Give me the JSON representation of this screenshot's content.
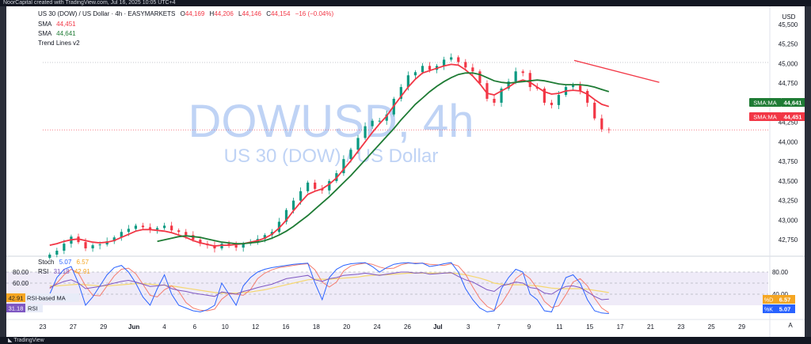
{
  "header_strip": "NoorCapital created with TradingView.com, Jul 16, 2025 10:05 UTC+4",
  "footer_brand": "TradingView",
  "legend": {
    "symbol": "US 30 (DOW) / US Dollar · 4h · EASYMARKETS",
    "o_label": "O",
    "o": "44,169",
    "h_label": "H",
    "h": "44,206",
    "l_label": "L",
    "l": "44,146",
    "c_label": "C",
    "c": "44,154",
    "change": "−16 (−0.04%)",
    "sma1_label": "SMA",
    "sma1": "44,451",
    "sma2_label": "SMA",
    "sma2": "44,641",
    "trend_label": "Trend Lines v2"
  },
  "watermark": {
    "main": "DOWUSD, 4h",
    "sub": "US 30 (DOW) / US Dollar"
  },
  "axis": {
    "currency": "USD",
    "corner": "A"
  },
  "price_badges": [
    {
      "label": "SMA:MA",
      "value": "44,641",
      "color": "#1e7b34"
    },
    {
      "label": "SMA:MA",
      "value": "44,451",
      "color": "#f23645"
    }
  ],
  "oscillator": {
    "stoch_label": "Stoch",
    "stoch_k": "5.07",
    "stoch_d": "6.57",
    "rsi_label": "RSI",
    "rsi_a": "31.18",
    "rsi_b": "42.91",
    "rsi_ma_label": "RSI-based MA",
    "rsi_badge": "31.18",
    "d_badge_label": "%D",
    "d_badge": "6.57",
    "k_badge_label": "%K",
    "k_badge": "5.07"
  },
  "chart_data": {
    "type": "candlestick",
    "symbol": "US 30 (DOW) / US Dollar",
    "timeframe": "4h",
    "y_ticks": [
      42750,
      43000,
      43250,
      43500,
      43750,
      44000,
      44250,
      44500,
      44750,
      45000,
      45250,
      45500
    ],
    "y_tick_labels": [
      "42,750",
      "43,000",
      "43,250",
      "43,500",
      "43,750",
      "44,000",
      "44,250",
      "44,500",
      "44,750",
      "45,000",
      "45,250",
      "45,500"
    ],
    "ylim": [
      42560,
      45630
    ],
    "x_ticks": [
      {
        "label": "23",
        "t": 0
      },
      {
        "label": "27",
        "t": 1.75
      },
      {
        "label": "29",
        "t": 3.5
      },
      {
        "label": "Jun",
        "t": 5.25
      },
      {
        "label": "4",
        "t": 7.0
      },
      {
        "label": "6",
        "t": 8.75
      },
      {
        "label": "10",
        "t": 10.5
      },
      {
        "label": "12",
        "t": 12.25
      },
      {
        "label": "16",
        "t": 14.0
      },
      {
        "label": "18",
        "t": 15.75
      },
      {
        "label": "20",
        "t": 17.5
      },
      {
        "label": "24",
        "t": 19.25
      },
      {
        "label": "26",
        "t": 21.0
      },
      {
        "label": "Jul",
        "t": 22.75
      },
      {
        "label": "3",
        "t": 24.5
      },
      {
        "label": "7",
        "t": 26.25
      },
      {
        "label": "9",
        "t": 28.0
      },
      {
        "label": "11",
        "t": 29.75
      },
      {
        "label": "15",
        "t": 31.5
      },
      {
        "label": "17",
        "t": 33.25
      },
      {
        "label": "21",
        "t": 35.0
      },
      {
        "label": "23",
        "t": 36.75
      },
      {
        "label": "25",
        "t": 38.5
      },
      {
        "label": "29",
        "t": 40.25
      }
    ],
    "bold_x_labels": [
      "Jun",
      "Jul"
    ],
    "close": [
      42560,
      42610,
      42700,
      42790,
      42720,
      42640,
      42680,
      42690,
      42730,
      42780,
      42850,
      42890,
      42930,
      42910,
      42880,
      42900,
      42930,
      42870,
      42850,
      42810,
      42750,
      42700,
      42680,
      42640,
      42700,
      42680,
      42650,
      42700,
      42720,
      42760,
      42810,
      42850,
      42980,
      43130,
      43250,
      43370,
      43480,
      43400,
      43380,
      43500,
      43600,
      43780,
      43900,
      44050,
      44200,
      44270,
      44270,
      44350,
      44550,
      44700,
      44850,
      44890,
      44970,
      44920,
      44970,
      45050,
      45080,
      45020,
      44950,
      44900,
      44750,
      44550,
      44500,
      44680,
      44770,
      44900,
      44880,
      44700,
      44680,
      44500,
      44470,
      44600,
      44700,
      44720,
      44650,
      44500,
      44300,
      44160,
      44154
    ],
    "last_price": 44154,
    "series": [
      {
        "name": "SMA",
        "value": "44,451",
        "color": "#f23645",
        "values": [
          42680,
          42700,
          42730,
          42750,
          42760,
          42740,
          42720,
          42710,
          42720,
          42740,
          42780,
          42820,
          42860,
          42880,
          42880,
          42870,
          42860,
          42840,
          42810,
          42780,
          42740,
          42710,
          42690,
          42670,
          42680,
          42680,
          42690,
          42700,
          42720,
          42740,
          42770,
          42820,
          42900,
          43000,
          43120,
          43230,
          43330,
          43370,
          43400,
          43460,
          43540,
          43650,
          43760,
          43880,
          44000,
          44120,
          44230,
          44330,
          44460,
          44580,
          44700,
          44800,
          44880,
          44910,
          44940,
          44970,
          44990,
          44980,
          44920,
          44840,
          44740,
          44620,
          44600,
          44650,
          44700,
          44760,
          44790,
          44760,
          44700,
          44640,
          44610,
          44620,
          44650,
          44660,
          44650,
          44610,
          44540,
          44480,
          44451
        ]
      },
      {
        "name": "SMA",
        "value": "44,641",
        "color": "#1e7b34",
        "values": [
          null,
          null,
          null,
          null,
          null,
          null,
          null,
          null,
          null,
          null,
          null,
          null,
          null,
          null,
          null,
          42730,
          42750,
          42770,
          42790,
          42800,
          42790,
          42780,
          42760,
          42740,
          42720,
          42710,
          42700,
          42700,
          42710,
          42720,
          42740,
          42770,
          42810,
          42860,
          42920,
          42990,
          43060,
          43140,
          43220,
          43300,
          43390,
          43480,
          43570,
          43670,
          43770,
          43870,
          43970,
          44070,
          44170,
          44280,
          44380,
          44480,
          44560,
          44640,
          44710,
          44770,
          44820,
          44860,
          44880,
          44880,
          44860,
          44820,
          44780,
          44760,
          44750,
          44760,
          44770,
          44780,
          44790,
          44780,
          44760,
          44740,
          44730,
          44730,
          44730,
          44720,
          44700,
          44670,
          44641
        ]
      }
    ],
    "trend_line": {
      "from": [
        30.6,
        45040
      ],
      "to": [
        35.5,
        44760
      ]
    },
    "rsi": [
      52,
      58,
      63,
      66,
      60,
      50,
      52,
      54,
      57,
      60,
      63,
      65,
      62,
      58,
      54,
      55,
      57,
      50,
      47,
      45,
      42,
      40,
      38,
      36,
      44,
      42,
      40,
      45,
      48,
      52,
      55,
      58,
      63,
      68,
      70,
      72,
      74,
      66,
      63,
      68,
      70,
      74,
      75,
      76,
      78,
      76,
      74,
      76,
      78,
      80,
      80,
      78,
      79,
      76,
      77,
      78,
      79,
      72,
      66,
      62,
      55,
      48,
      45,
      55,
      58,
      62,
      60,
      52,
      50,
      42,
      40,
      48,
      54,
      55,
      52,
      44,
      36,
      30,
      31.18
    ],
    "rsi_ma": [
      55,
      55,
      56,
      57,
      58,
      57,
      56,
      55,
      55,
      56,
      57,
      58,
      59,
      59,
      58,
      57,
      56,
      55,
      53,
      51,
      49,
      47,
      45,
      43,
      42,
      42,
      42,
      43,
      44,
      46,
      48,
      51,
      54,
      57,
      60,
      63,
      66,
      67,
      67,
      67,
      68,
      69,
      70,
      71,
      73,
      74,
      75,
      75,
      76,
      77,
      78,
      78,
      78,
      78,
      78,
      78,
      78,
      77,
      75,
      72,
      69,
      65,
      60,
      58,
      57,
      57,
      57,
      56,
      55,
      53,
      51,
      50,
      50,
      50,
      50,
      49,
      47,
      45,
      42.91
    ],
    "stoch_k": [
      40,
      70,
      85,
      90,
      60,
      20,
      35,
      55,
      75,
      88,
      92,
      80,
      60,
      35,
      20,
      50,
      75,
      40,
      20,
      15,
      10,
      8,
      12,
      20,
      60,
      40,
      20,
      55,
      70,
      80,
      85,
      88,
      90,
      92,
      94,
      95,
      96,
      60,
      30,
      70,
      85,
      92,
      95,
      96,
      97,
      90,
      80,
      88,
      94,
      96,
      97,
      95,
      96,
      90,
      92,
      95,
      97,
      80,
      50,
      30,
      15,
      8,
      10,
      50,
      70,
      85,
      80,
      40,
      30,
      10,
      8,
      40,
      70,
      75,
      60,
      30,
      10,
      6,
      5.07
    ],
    "stoch_d": [
      50,
      60,
      75,
      85,
      78,
      55,
      38,
      37,
      55,
      73,
      85,
      87,
      77,
      58,
      38,
      35,
      48,
      55,
      45,
      25,
      15,
      11,
      10,
      13,
      31,
      41,
      40,
      38,
      48,
      68,
      78,
      84,
      88,
      90,
      92,
      94,
      95,
      84,
      62,
      53,
      62,
      82,
      91,
      94,
      96,
      94,
      89,
      86,
      87,
      93,
      96,
      96,
      96,
      94,
      93,
      92,
      95,
      91,
      76,
      53,
      32,
      18,
      11,
      23,
      43,
      68,
      78,
      68,
      50,
      27,
      16,
      19,
      39,
      62,
      68,
      55,
      33,
      15,
      6.57
    ],
    "osc_levels": [
      80,
      60,
      40
    ],
    "osc_level_labels": [
      "80.00",
      "60.00",
      "80.00",
      "40.00"
    ]
  }
}
